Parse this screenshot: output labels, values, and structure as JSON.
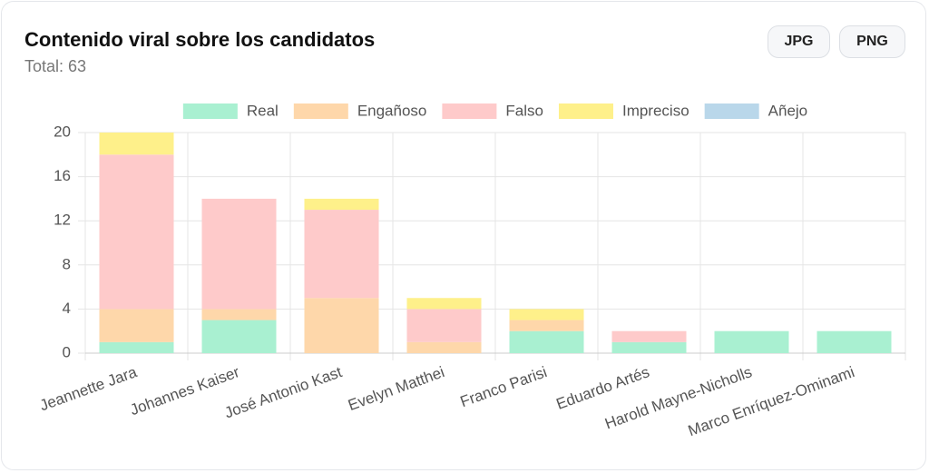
{
  "chart_data": {
    "type": "stacked-bar",
    "title": "Contenido viral sobre los candidatos",
    "subtitle": "Total: 63",
    "buttons": [
      "JPG",
      "PNG"
    ],
    "categories": [
      "Jeannette Jara",
      "Johannes Kaiser",
      "José Antonio Kast",
      "Evelyn Matthei",
      "Franco Parisi",
      "Eduardo Artés",
      "Harold Mayne-Nicholls",
      "Marco Enríquez-Ominami"
    ],
    "series": [
      {
        "name": "Real",
        "color": "#a9f0d1",
        "values": [
          1,
          3,
          0,
          0,
          2,
          1,
          2,
          2
        ]
      },
      {
        "name": "Engañoso",
        "color": "#fed7aa",
        "values": [
          3,
          1,
          5,
          1,
          1,
          0,
          0,
          0
        ]
      },
      {
        "name": "Falso",
        "color": "#fecaca",
        "values": [
          14,
          10,
          8,
          3,
          0,
          1,
          0,
          0
        ]
      },
      {
        "name": "Impreciso",
        "color": "#fef08a",
        "values": [
          2,
          0,
          1,
          1,
          1,
          0,
          0,
          0
        ]
      },
      {
        "name": "Añejo",
        "color": "#b9d7ea",
        "values": [
          0,
          0,
          0,
          0,
          0,
          0,
          0,
          0
        ]
      }
    ],
    "ylim": [
      0,
      20
    ],
    "yticks": [
      0,
      4,
      8,
      12,
      16,
      20
    ],
    "grid": true
  }
}
